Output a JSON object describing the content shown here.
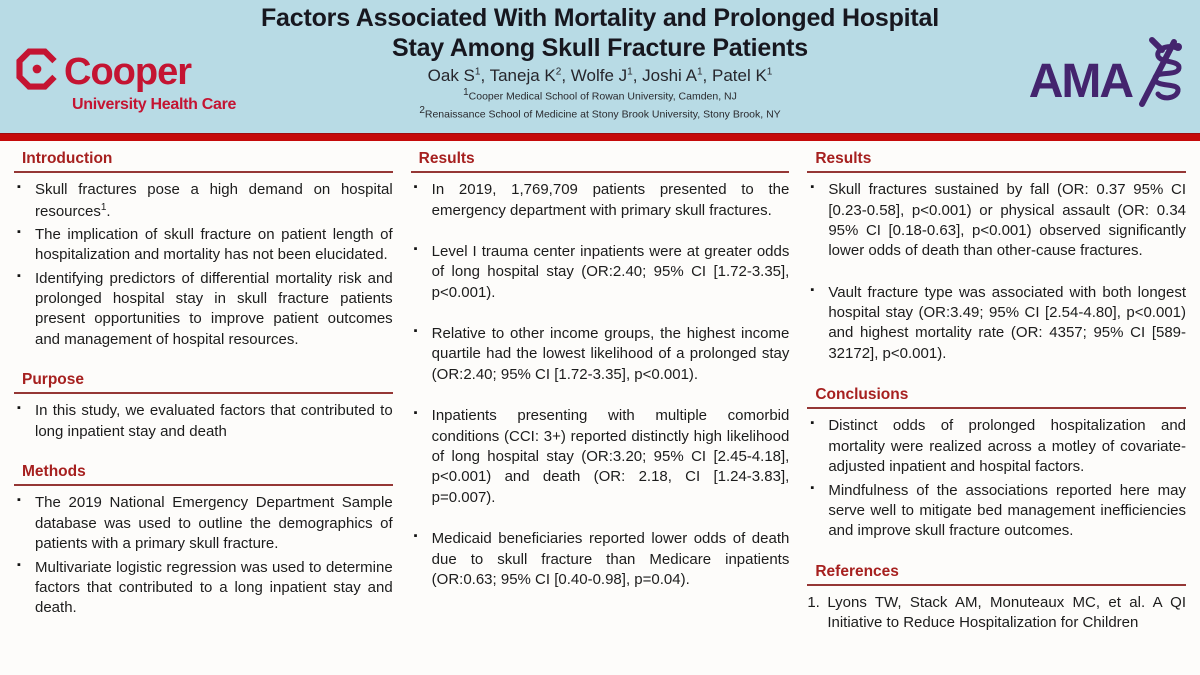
{
  "poster": {
    "title_line1": "Factors Associated With Mortality and Prolonged Hospital",
    "title_line2": "Stay Among Skull Fracture Patients",
    "authors": "Oak S^1, Taneja K^2, Wolfe J^1, Joshi A^1, Patel K^1",
    "affiliation1": "^1Cooper Medical School of Rowan University, Camden, NJ",
    "affiliation2": "^2Renaissance School of Medicine at Stony Brook University, Stony Brook, NY",
    "logos": {
      "cooper_name": "Cooper",
      "cooper_subtitle": "University Health Care",
      "cooper_icon": "octagon-c-icon",
      "ama_name": "AMA",
      "ama_icon": "rod-of-asclepius-icon"
    },
    "colors": {
      "header_bg": "#B8DBE5",
      "divider_band": "#C50A0A",
      "section_heading": "#A6201F",
      "section_rule": "#953735",
      "cooper_brand": "#C41432",
      "ama_brand": "#44246E",
      "body_bg": "#FDFCFA",
      "body_text": "#1C1C1C",
      "title_text": "#17171F"
    }
  },
  "columns": [
    {
      "sections": [
        {
          "heading": "Introduction",
          "items": [
            "Skull fractures pose a high demand on hospital resources^1.",
            "The implication of skull fracture on patient length of hospitalization and mortality has not been elucidated.",
            "Identifying predictors of differential mortality risk and prolonged hospital stay in skull fracture patients present opportunities to improve patient outcomes and management of hospital resources."
          ]
        },
        {
          "heading": "Purpose",
          "items": [
            "In this study, we evaluated factors that contributed to long inpatient stay and death"
          ]
        },
        {
          "heading": "Methods",
          "items": [
            "The 2019 National Emergency Department Sample database was used to outline the demographics of patients with a primary skull fracture.",
            "Multivariate logistic regression was used to determine factors that contributed to a long inpatient stay and death."
          ]
        }
      ]
    },
    {
      "sections": [
        {
          "heading": "Results",
          "spaced": true,
          "items": [
            "In 2019, 1,769,709 patients presented to the emergency department with primary skull fractures.",
            "Level I trauma center inpatients were at greater odds of long hospital stay (OR:2.40; 95% CI [1.72-3.35], p<0.001).",
            "Relative to other income groups, the highest income quartile had the lowest likelihood of a prolonged stay (OR:2.40; 95% CI [1.72-3.35], p<0.001).",
            "Inpatients presenting with multiple comorbid conditions (CCI: 3+) reported distinctly high likelihood of long hospital stay (OR:3.20; 95% CI [2.45-4.18], p<0.001) and death (OR: 2.18, CI [1.24-3.83], p=0.007).",
            "Medicaid beneficiaries reported lower odds of death due to skull fracture than Medicare inpatients (OR:0.63; 95% CI [0.40-0.98], p=0.04)."
          ]
        }
      ]
    },
    {
      "sections": [
        {
          "heading": "Results",
          "spaced": true,
          "items": [
            "Skull fractures sustained by fall (OR: 0.37 95% CI [0.23-0.58], p<0.001) or physical assault (OR: 0.34 95% CI [0.18-0.63], p<0.001) observed significantly lower odds of death than other-cause fractures.",
            "Vault fracture type was associated with both longest hospital stay (OR:3.49; 95% CI [2.54-4.80], p<0.001) and highest mortality rate (OR: 4357; 95% CI [589-32172], p<0.001)."
          ]
        },
        {
          "heading": "Conclusions",
          "items": [
            "Distinct odds of prolonged hospitalization and mortality were realized across a motley of covariate-adjusted inpatient and hospital factors.",
            "Mindfulness of the associations reported here may serve well to mitigate bed management inefficiencies and improve skull fracture outcomes."
          ]
        },
        {
          "heading": "References",
          "numbered": true,
          "items": [
            "Lyons TW, Stack AM, Monuteaux MC, et al. A QI Initiative to Reduce Hospitalization for Children"
          ]
        }
      ]
    }
  ]
}
